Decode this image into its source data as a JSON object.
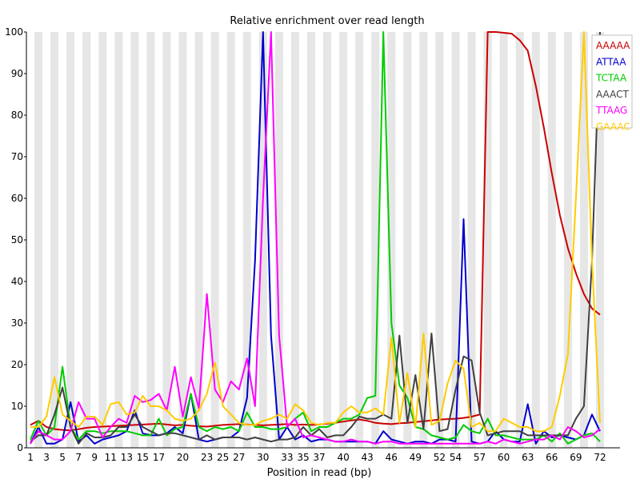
{
  "chart_data": {
    "type": "line",
    "title": "Relative enrichment over read length",
    "xlabel": "Position in read (bp)",
    "ylabel": "",
    "ylim": [
      0,
      100
    ],
    "yticks": [
      0,
      10,
      20,
      30,
      40,
      50,
      60,
      70,
      80,
      90,
      100
    ],
    "x": [
      1,
      2,
      3,
      4,
      5,
      6,
      7,
      8,
      9,
      10,
      11,
      12,
      13,
      14,
      15,
      16,
      17,
      18,
      19,
      20,
      21,
      22,
      23,
      24,
      25,
      26,
      27,
      28,
      29,
      30,
      31,
      32,
      33,
      34,
      35,
      36,
      37,
      38,
      39,
      40,
      41,
      42,
      43,
      44,
      45,
      46,
      47,
      48,
      49,
      50,
      51,
      52,
      53,
      54,
      55,
      56,
      57,
      58,
      59,
      60,
      61,
      62,
      63,
      64,
      65,
      66,
      67,
      68,
      69,
      70,
      71,
      72
    ],
    "xtick_labels": [
      "1",
      "3",
      "5",
      "7",
      "9",
      "11",
      "13",
      "15",
      "17",
      "20",
      "23",
      "25",
      "27",
      "30",
      "33",
      "35",
      "37",
      "40",
      "43",
      "46",
      "49",
      "52",
      "54",
      "57",
      "60",
      "63",
      "66",
      "69",
      "72"
    ],
    "grid": "alternating vertical stripes",
    "legend_position": "top-right",
    "series": [
      {
        "name": "AAAAA",
        "color": "#cc0000",
        "values": [
          5.5,
          6.5,
          5,
          4.5,
          4.3,
          4.2,
          4.5,
          4.8,
          5,
          5.1,
          5.2,
          5.3,
          5.4,
          5.5,
          5.6,
          5.7,
          5.8,
          5.6,
          5.4,
          5.5,
          5.3,
          5.2,
          5.1,
          5.3,
          5.5,
          5.6,
          5.7,
          5.6,
          5.5,
          5.4,
          5.5,
          5.6,
          5.7,
          5.5,
          5.6,
          5.5,
          5.6,
          5.8,
          6,
          6.3,
          6.6,
          6.8,
          6.5,
          6,
          5.8,
          5.7,
          5.9,
          6,
          6.2,
          6.4,
          6.6,
          6.8,
          6.9,
          7,
          7.2,
          7.5,
          8,
          100,
          100,
          99.8,
          99.6,
          98,
          95.5,
          87,
          77,
          66,
          56,
          48,
          42,
          37,
          33.5,
          32
        ]
      },
      {
        "name": "ATTAA",
        "color": "#0000cc",
        "values": [
          1,
          5,
          1,
          1,
          2,
          11,
          1.5,
          3,
          1,
          2,
          2.5,
          3,
          4,
          9,
          3.5,
          3,
          3,
          3.5,
          5,
          3.5,
          13,
          2,
          1.5,
          2,
          2.5,
          2.5,
          4,
          12,
          45,
          100,
          27,
          2,
          5,
          2,
          3,
          1.5,
          2,
          2,
          1.5,
          1.5,
          1.5,
          1.5,
          1.5,
          1,
          4,
          2,
          1.5,
          1,
          1.5,
          1.5,
          1,
          2,
          2,
          1.5,
          55,
          1.5,
          1,
          1.5,
          4,
          2,
          1.5,
          1.5,
          10.5,
          1,
          4,
          2.5,
          3,
          2.5,
          2,
          3,
          8,
          4
        ]
      },
      {
        "name": "TCTAA",
        "color": "#00cc00",
        "values": [
          2,
          6.5,
          3,
          5,
          19.5,
          5,
          2,
          4,
          4,
          3.5,
          4,
          4,
          4,
          3.5,
          3,
          3,
          7,
          3,
          4.5,
          5,
          13,
          5,
          4,
          5,
          4.5,
          5,
          4,
          8.5,
          5,
          5,
          4.5,
          4.5,
          5,
          7,
          8.5,
          4,
          5,
          5,
          6,
          7,
          7,
          8,
          12,
          12.5,
          100,
          30,
          15,
          12,
          5,
          4.5,
          3,
          2.5,
          2,
          2.5,
          5.5,
          4,
          3.5,
          7,
          3,
          3,
          2.5,
          2,
          2,
          2,
          3,
          1.5,
          3.5,
          1,
          2,
          3,
          3.5,
          1.5
        ]
      },
      {
        "name": "AAACT",
        "color": "#404040",
        "values": [
          1.5,
          3,
          3,
          8,
          14.5,
          5,
          1,
          3.5,
          2.5,
          2.5,
          3,
          5,
          5,
          8,
          5,
          4,
          3,
          3.5,
          3.5,
          3,
          2.5,
          2,
          3,
          2,
          2.5,
          2.5,
          2.5,
          2,
          2.5,
          2,
          1.5,
          2,
          2,
          2.5,
          5,
          3,
          4.5,
          2.5,
          3,
          3,
          5,
          7.5,
          7,
          7,
          8,
          7,
          27,
          6,
          17.5,
          4.5,
          27.5,
          4,
          4.5,
          14,
          22,
          21,
          8.5,
          3,
          3.5,
          4,
          4,
          4,
          3,
          3,
          3,
          3,
          3,
          3,
          7,
          10,
          45,
          100
        ]
      },
      {
        "name": "TTAAG",
        "color": "#ff00ff",
        "values": [
          1,
          4,
          3,
          2,
          2,
          4,
          11,
          7,
          7,
          2.5,
          5,
          7,
          6,
          12.5,
          11,
          11.5,
          13,
          9,
          19.5,
          7.5,
          17,
          9.5,
          37,
          14,
          11,
          16,
          14,
          21.5,
          10,
          60,
          100,
          27,
          5,
          7,
          2.5,
          3,
          2.5,
          2,
          1.5,
          1.5,
          2,
          1.5,
          1.5,
          1,
          1.5,
          1.5,
          1,
          1,
          1,
          1,
          1,
          1,
          1,
          1,
          1,
          1,
          1,
          1.5,
          1,
          2,
          1.5,
          1,
          1.5,
          2,
          2,
          3,
          2,
          5,
          4,
          2.5,
          3,
          4.5
        ]
      },
      {
        "name": "GAAAC",
        "color": "#ffcc00",
        "values": [
          5,
          5,
          7.5,
          17,
          8,
          6.5,
          5,
          7.5,
          7.5,
          5.5,
          10.5,
          11,
          8,
          8.5,
          12.5,
          10,
          10,
          9,
          7,
          6.5,
          7,
          9,
          13,
          20.5,
          10,
          8,
          6,
          5.5,
          5.5,
          6.5,
          7,
          8,
          7,
          10.5,
          9,
          6,
          5.5,
          6,
          6,
          8.5,
          10,
          8.5,
          8.5,
          9.5,
          8,
          26.5,
          6,
          18,
          5,
          27.5,
          5.5,
          6.5,
          15.5,
          21,
          19,
          5,
          6,
          4,
          4,
          7,
          6,
          5,
          5,
          4,
          4,
          5,
          12.5,
          22.5,
          60,
          100,
          45,
          6
        ]
      }
    ]
  }
}
